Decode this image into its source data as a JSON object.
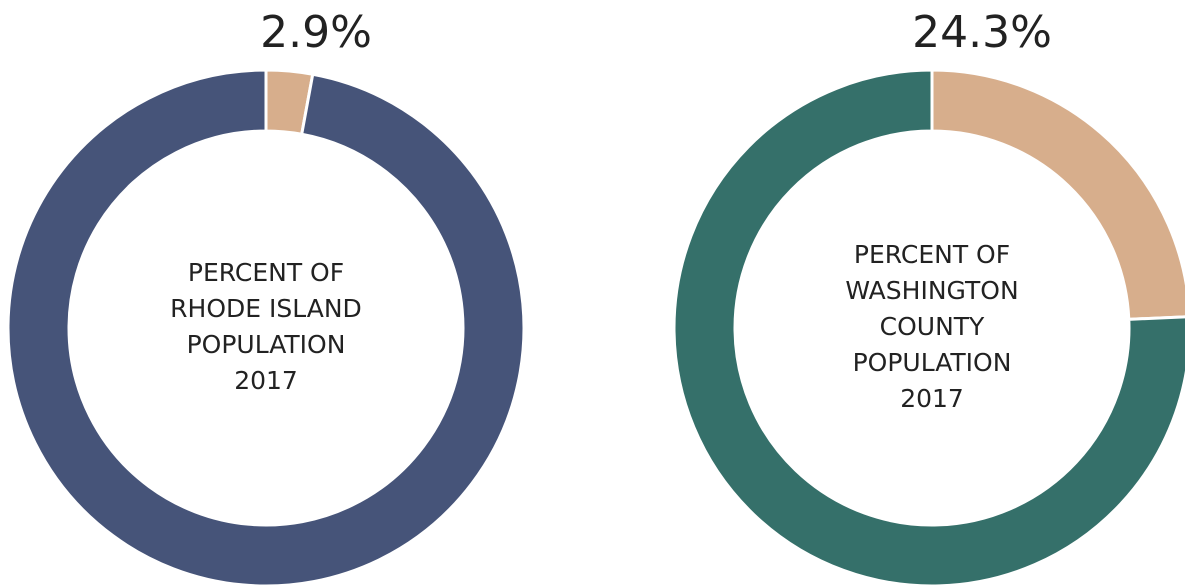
{
  "chart_data": [
    {
      "type": "donut",
      "values": [
        2.9,
        97.1
      ],
      "value_labels": [
        "2.9%",
        null
      ],
      "colors": [
        "#d7ae8c",
        "#465479"
      ],
      "center_text": [
        "PERCENT OF",
        "RHODE ISLAND",
        "POPULATION",
        "2017"
      ]
    },
    {
      "type": "donut",
      "values": [
        24.3,
        75.7
      ],
      "value_labels": [
        "24.3%",
        null
      ],
      "colors": [
        "#d7ae8c",
        "#35706a"
      ],
      "center_text": [
        "PERCENT OF",
        "WASHINGTON",
        "COUNTY",
        "POPULATION",
        "2017"
      ]
    }
  ]
}
